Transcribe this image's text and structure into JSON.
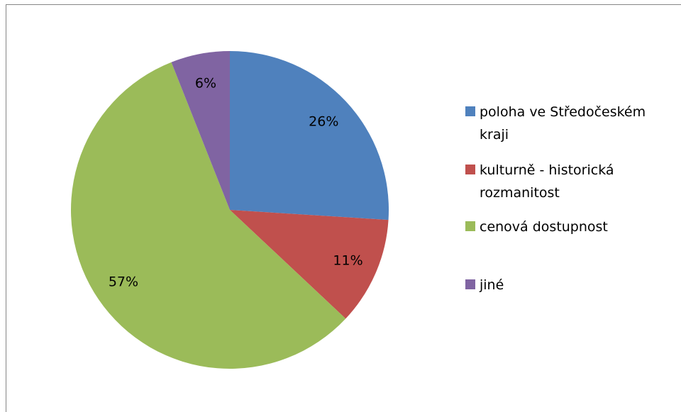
{
  "chart_data": {
    "type": "pie",
    "categories": [
      "poloha ve Středočeském kraji",
      "kulturně - historická rozmanitost",
      "cenová dostupnost",
      "jiné"
    ],
    "values": [
      26,
      11,
      57,
      6
    ],
    "value_labels": [
      "26%",
      "11%",
      "57%",
      "6%"
    ],
    "colors": [
      "#4f81bd",
      "#c0504d",
      "#9bbb59",
      "#8064a2"
    ],
    "legend": "right"
  }
}
